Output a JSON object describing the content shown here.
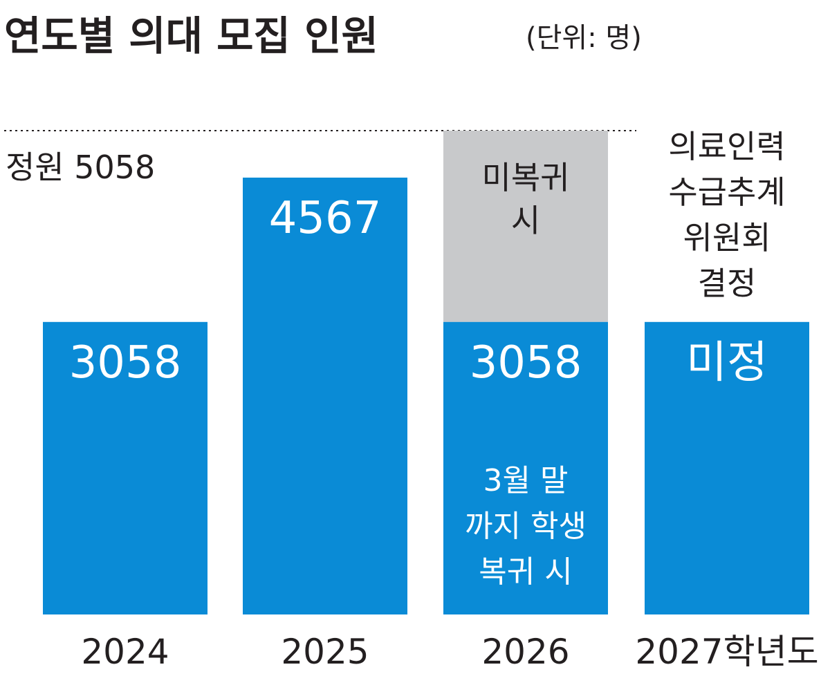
{
  "chart_data": {
    "type": "bar",
    "title": "연도별 의대 모집 인원",
    "unit": "(단위: 명)",
    "categories": [
      "2024",
      "2025",
      "2026",
      "2027학년도"
    ],
    "values": [
      3058,
      4567,
      3058,
      null
    ],
    "value_labels": [
      "3058",
      "4567",
      "3058",
      "미정"
    ],
    "reference_line": {
      "label": "정원 5058",
      "value": 5058
    },
    "stacked_segment": {
      "category": "2026",
      "value": 2000,
      "top_value": 5058,
      "lines": [
        "미복귀",
        "시"
      ]
    },
    "bar_notes": [
      {
        "category": "2026",
        "lines": [
          "3월 말",
          "까지 학생",
          "복귀 시"
        ]
      }
    ],
    "above_notes": [
      {
        "category": "2027학년도",
        "lines": [
          "의료인력",
          "수급추계",
          "위원회",
          "결정"
        ]
      }
    ],
    "ylim": [
      0,
      5058
    ],
    "grid": false,
    "colors": {
      "bar": "#0a8bd6",
      "stacked": "#c8c9cb",
      "text": "#231f20",
      "reference_line": "#231f20"
    }
  }
}
